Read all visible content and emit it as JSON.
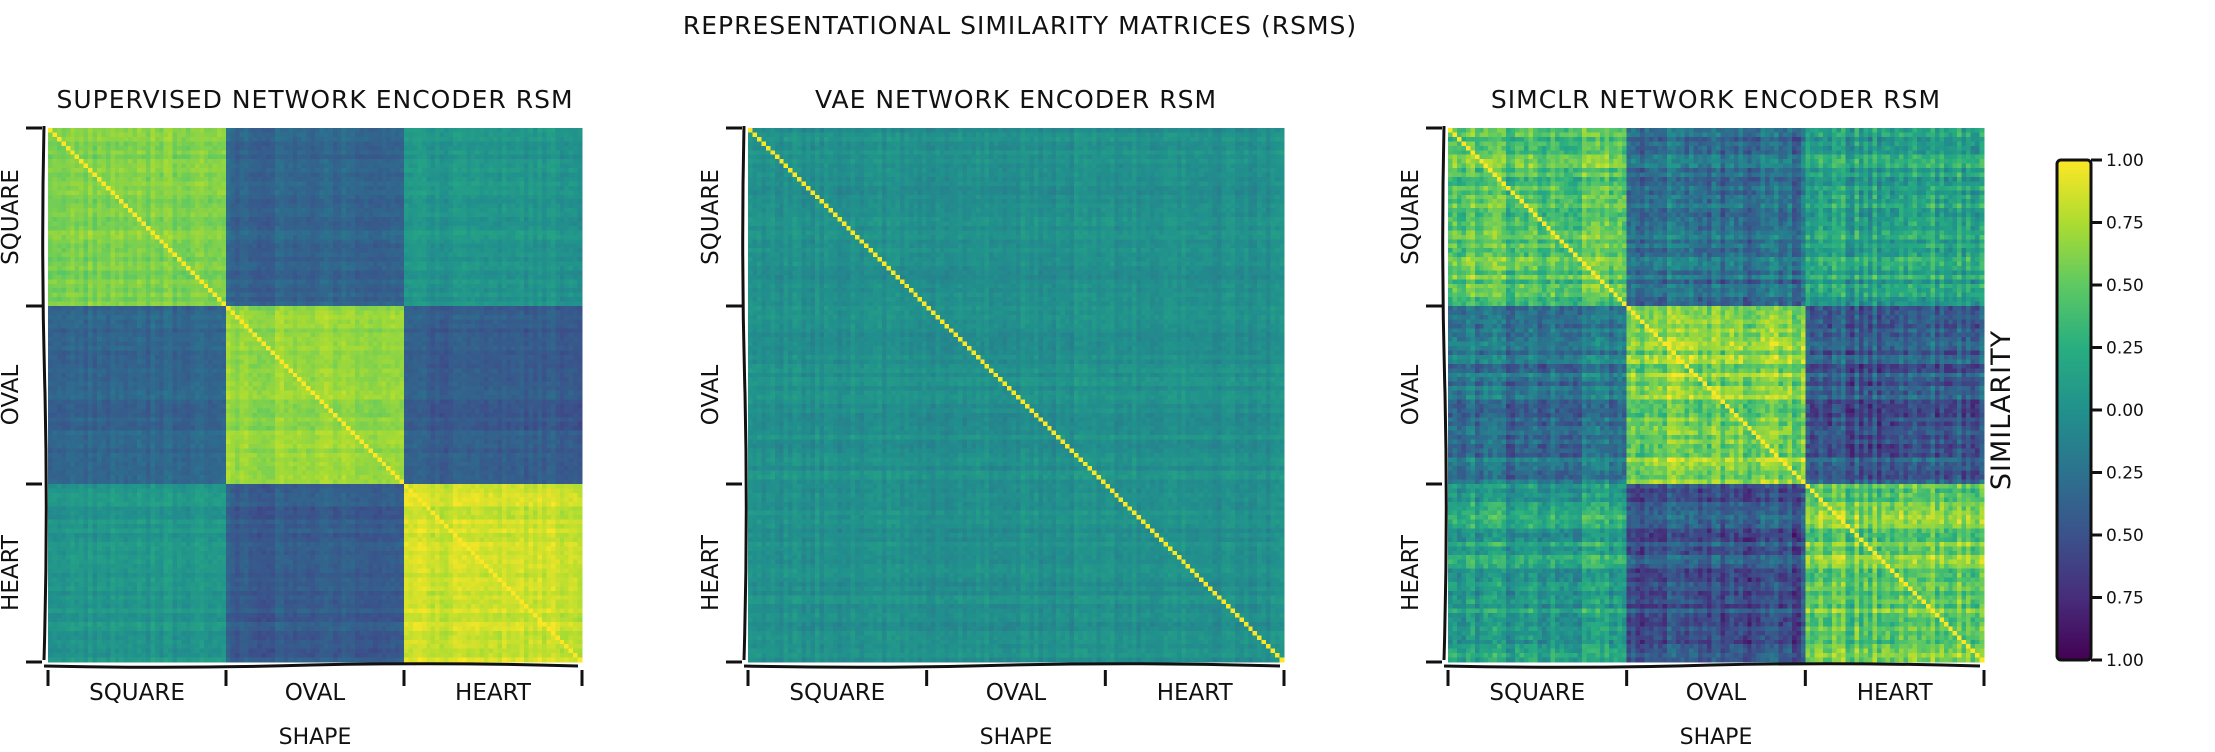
{
  "figure": {
    "suptitle": "REPRESENTATIONAL SIMILARITY MATRICES (RSMS)"
  },
  "chart_data": [
    {
      "type": "heatmap",
      "title": "SUPERVISED NETWORK ENCODER RSM",
      "xlabel": "SHAPE",
      "ylabel": "",
      "categories": [
        "SQUARE",
        "OVAL",
        "HEART"
      ],
      "block_means": [
        [
          0.62,
          -0.35,
          0.05
        ],
        [
          -0.35,
          0.68,
          -0.42
        ],
        [
          0.05,
          -0.42,
          0.85
        ]
      ],
      "within_noise": 0.12,
      "diagonal": 1.0
    },
    {
      "type": "heatmap",
      "title": "VAE NETWORK ENCODER RSM",
      "xlabel": "SHAPE",
      "ylabel": "",
      "categories": [
        "SQUARE",
        "OVAL",
        "HEART"
      ],
      "block_means": [
        [
          0.0,
          0.0,
          0.0
        ],
        [
          0.0,
          0.0,
          0.0
        ],
        [
          0.0,
          0.0,
          0.0
        ]
      ],
      "within_noise": 0.12,
      "diagonal": 1.0
    },
    {
      "type": "heatmap",
      "title": "SIMCLR NETWORK ENCODER RSM",
      "xlabel": "SHAPE",
      "ylabel": "",
      "categories": [
        "SQUARE",
        "OVAL",
        "HEART"
      ],
      "block_means": [
        [
          0.45,
          -0.25,
          0.15
        ],
        [
          -0.25,
          0.62,
          -0.45
        ],
        [
          0.15,
          -0.45,
          0.55
        ]
      ],
      "within_noise": 0.35,
      "diagonal": 1.0
    }
  ],
  "colorbar": {
    "label": "SIMILARITY",
    "ticks": [
      "1.00",
      "0.75",
      "0.50",
      "0.25",
      "0.00",
      "0.25",
      "0.50",
      "0.75",
      "1.00"
    ],
    "range": [
      -1,
      1
    ],
    "colormap": "viridis"
  }
}
